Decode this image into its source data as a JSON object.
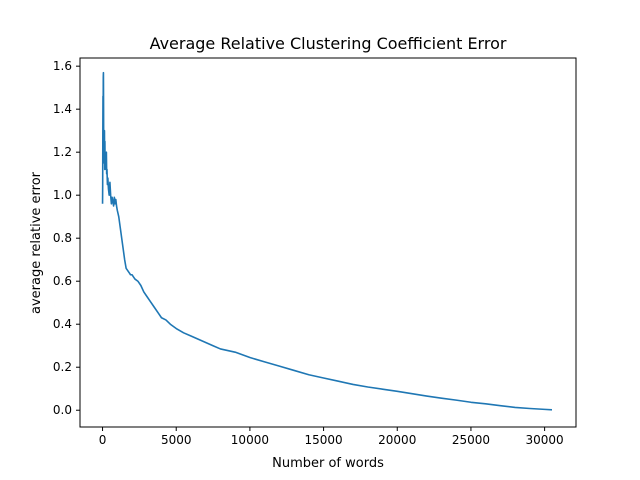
{
  "chart_data": {
    "type": "line",
    "title": "Average Relative Clustering Coefficient Error",
    "xlabel": "Number of words",
    "ylabel": "average relative error",
    "xlim": [
      -1530,
      32130
    ],
    "ylim": [
      -0.078,
      1.638
    ],
    "xticks": [
      0,
      5000,
      10000,
      15000,
      20000,
      25000,
      30000
    ],
    "xtick_labels": [
      "0",
      "5000",
      "10000",
      "15000",
      "20000",
      "25000",
      "30000"
    ],
    "yticks": [
      0.0,
      0.2,
      0.4,
      0.6,
      0.8,
      1.0,
      1.2,
      1.4,
      1.6
    ],
    "ytick_labels": [
      "0.0",
      "0.2",
      "0.4",
      "0.6",
      "0.8",
      "1.0",
      "1.2",
      "1.4",
      "1.6"
    ],
    "grid": false,
    "line_color": "#1f77b4",
    "series": [
      {
        "name": "average relative error",
        "x": [
          0,
          10,
          20,
          30,
          40,
          50,
          60,
          70,
          80,
          90,
          100,
          110,
          120,
          130,
          140,
          150,
          160,
          170,
          180,
          200,
          220,
          240,
          260,
          280,
          300,
          330,
          360,
          400,
          450,
          500,
          550,
          600,
          650,
          700,
          750,
          800,
          850,
          900,
          950,
          1000,
          1100,
          1200,
          1300,
          1400,
          1500,
          1600,
          1700,
          1800,
          1900,
          2000,
          2100,
          2200,
          2400,
          2600,
          2800,
          3000,
          3200,
          3500,
          3800,
          4000,
          4300,
          4600,
          5000,
          5500,
          6000,
          6500,
          7000,
          7500,
          8000,
          9000,
          10000,
          11000,
          12000,
          13000,
          14000,
          15000,
          16000,
          17000,
          18000,
          19000,
          20000,
          21000,
          22000,
          23000,
          24000,
          25000,
          26000,
          27000,
          28000,
          29000,
          30000,
          30500
        ],
        "y": [
          0.96,
          1.05,
          1.3,
          1.46,
          1.25,
          1.55,
          1.57,
          1.4,
          1.2,
          1.3,
          1.28,
          1.15,
          1.22,
          1.3,
          1.18,
          1.12,
          1.25,
          1.16,
          1.2,
          1.14,
          1.18,
          1.12,
          1.2,
          1.1,
          1.12,
          1.05,
          1.08,
          1.03,
          1.0,
          1.06,
          1.0,
          0.96,
          0.99,
          0.97,
          0.95,
          0.99,
          0.96,
          0.98,
          0.95,
          0.93,
          0.9,
          0.85,
          0.8,
          0.75,
          0.7,
          0.66,
          0.65,
          0.64,
          0.63,
          0.63,
          0.62,
          0.61,
          0.6,
          0.58,
          0.55,
          0.53,
          0.51,
          0.48,
          0.45,
          0.43,
          0.42,
          0.4,
          0.38,
          0.36,
          0.345,
          0.33,
          0.315,
          0.3,
          0.285,
          0.27,
          0.245,
          0.225,
          0.205,
          0.185,
          0.165,
          0.15,
          0.135,
          0.12,
          0.108,
          0.098,
          0.088,
          0.077,
          0.066,
          0.056,
          0.047,
          0.037,
          0.03,
          0.021,
          0.013,
          0.008,
          0.004,
          0.002
        ]
      }
    ]
  }
}
